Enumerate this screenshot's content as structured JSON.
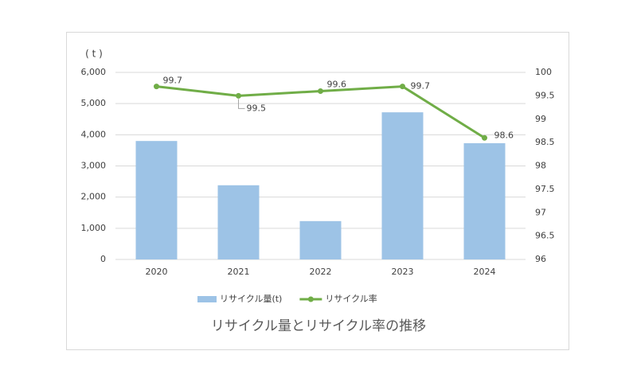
{
  "chart_data": {
    "type": "combo",
    "title": "リサイクル量とリサイクル率の推移",
    "y_unit": "( t )",
    "categories": [
      "2020",
      "2021",
      "2022",
      "2023",
      "2024"
    ],
    "series": [
      {
        "name": "リサイクル量(t)",
        "type": "bar",
        "color": "#9dc3e6",
        "values": [
          3800,
          2380,
          1230,
          4720,
          3730
        ]
      },
      {
        "name": "リサイクル率",
        "type": "line",
        "axis": "y2",
        "color": "#70ad47",
        "values": [
          99.7,
          99.5,
          99.6,
          99.7,
          98.6
        ]
      }
    ],
    "ylim": [
      0,
      6000
    ],
    "yticks": [
      0,
      {
        "value": 1000,
        "label": "1,000"
      },
      {
        "value": 2000,
        "label": "2,000"
      },
      {
        "value": 3000,
        "label": "3,000"
      },
      {
        "value": 4000,
        "label": "4,000"
      },
      {
        "value": 5000,
        "label": "5,000"
      },
      {
        "value": 6000,
        "label": "6,000"
      }
    ],
    "y2lim": [
      96,
      100
    ],
    "y2ticks": [
      96,
      96.5,
      97,
      97.5,
      98,
      98.5,
      99,
      99.5,
      100
    ],
    "grid": true,
    "legend": "bottom"
  }
}
